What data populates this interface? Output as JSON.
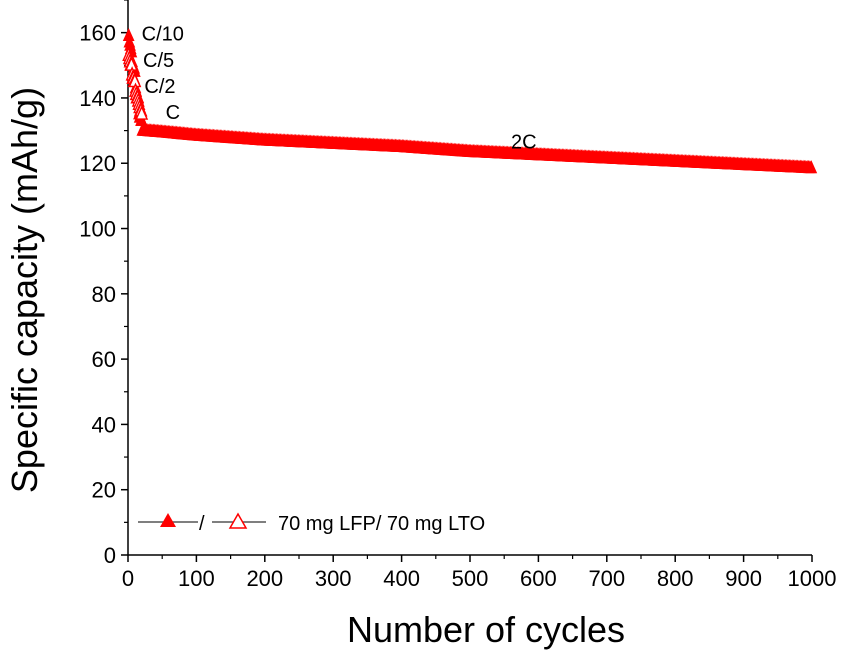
{
  "chart_data": {
    "type": "scatter",
    "xlabel": "Number of cycles",
    "ylabel": "Specific capacity (mAh/g)",
    "xlim": [
      0,
      1000
    ],
    "ylim": [
      0,
      170
    ],
    "xticks": [
      0,
      100,
      200,
      300,
      400,
      500,
      600,
      700,
      800,
      900,
      1000
    ],
    "yticks": [
      0,
      20,
      40,
      60,
      80,
      100,
      120,
      140,
      160
    ],
    "grid": false,
    "legend": {
      "placement": "bottom-left",
      "separator": "/",
      "label": "70 mg LFP/ 70 mg LTO"
    },
    "annotations": [
      {
        "text": "C/10",
        "x": 20,
        "y": 160
      },
      {
        "text": "C/5",
        "x": 22,
        "y": 152
      },
      {
        "text": "C/2",
        "x": 24,
        "y": 144
      },
      {
        "text": "C",
        "x": 55,
        "y": 136
      },
      {
        "text": "2C",
        "x": 560,
        "y": 127
      }
    ],
    "series": [
      {
        "marker": "filled-triangle",
        "color": "#ff0000",
        "rate_steps": [
          {
            "label": "C/10",
            "cycles": [
              1,
              5
            ],
            "values": [
              159,
              157,
              156,
              155,
              154
            ]
          },
          {
            "label": "C/5",
            "cycles": [
              6,
              10
            ],
            "values": [
              151,
              150,
              149,
              149,
              148
            ]
          },
          {
            "label": "C/2",
            "cycles": [
              11,
              15
            ],
            "values": [
              143,
              142,
              141,
              140,
              140
            ]
          },
          {
            "label": "C",
            "cycles": [
              16,
              20
            ],
            "values": [
              135,
              134,
              134,
              133,
              133
            ]
          }
        ],
        "long_term": {
          "label": "2C",
          "x": [
            21,
            50,
            100,
            200,
            300,
            400,
            500,
            600,
            700,
            800,
            900,
            1000
          ],
          "y": [
            130,
            129.5,
            128.5,
            127,
            126,
            125,
            123.5,
            122.5,
            121.5,
            120.5,
            119.5,
            118.5
          ]
        }
      },
      {
        "marker": "open-triangle",
        "color": "#ff0000",
        "rate_steps": [
          {
            "label": "C/10",
            "cycles": [
              1,
              5
            ],
            "values": [
              153,
              152,
              151,
              150,
              150
            ]
          },
          {
            "label": "C/5",
            "cycles": [
              6,
              10
            ],
            "values": [
              147,
              146,
              146,
              145,
              145
            ]
          },
          {
            "label": "C/2",
            "cycles": [
              11,
              15
            ],
            "values": [
              142,
              141,
              140,
              140,
              139
            ]
          },
          {
            "label": "C",
            "cycles": [
              16,
              20
            ],
            "values": [
              138,
              137,
              136,
              136,
              135
            ]
          }
        ]
      }
    ]
  }
}
